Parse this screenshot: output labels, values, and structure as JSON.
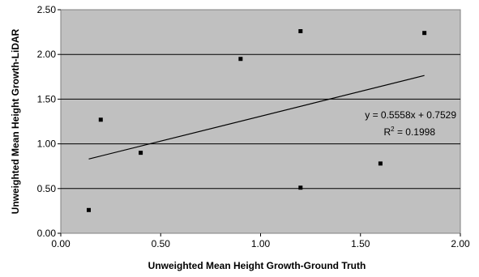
{
  "chart_data": {
    "type": "scatter",
    "xlabel": "Unweighted Mean Height Growth-Ground Truth",
    "ylabel": "Unweighted Mean Height Growth-LiDAR",
    "xlim": [
      0.0,
      2.0
    ],
    "ylim": [
      0.0,
      2.5
    ],
    "x_ticks": [
      "0.00",
      "0.50",
      "1.00",
      "1.50",
      "2.00"
    ],
    "y_ticks": [
      "0.00",
      "0.50",
      "1.00",
      "1.50",
      "2.00",
      "2.50"
    ],
    "grid": true,
    "background": "#c0c0c0",
    "points": [
      {
        "x": 0.14,
        "y": 0.26
      },
      {
        "x": 0.2,
        "y": 1.27
      },
      {
        "x": 0.4,
        "y": 0.9
      },
      {
        "x": 0.9,
        "y": 1.95
      },
      {
        "x": 1.2,
        "y": 2.26
      },
      {
        "x": 1.2,
        "y": 0.51
      },
      {
        "x": 1.6,
        "y": 0.78
      },
      {
        "x": 1.82,
        "y": 2.24
      }
    ],
    "trendline": {
      "slope": 0.5558,
      "intercept": 0.7529,
      "x_range": [
        0.14,
        1.82
      ]
    },
    "equation_label": "y = 0.5558x + 0.7529",
    "r2_label_prefix": "R",
    "r2_label_sup": "2",
    "r2_label_value": " = 0.1998"
  }
}
